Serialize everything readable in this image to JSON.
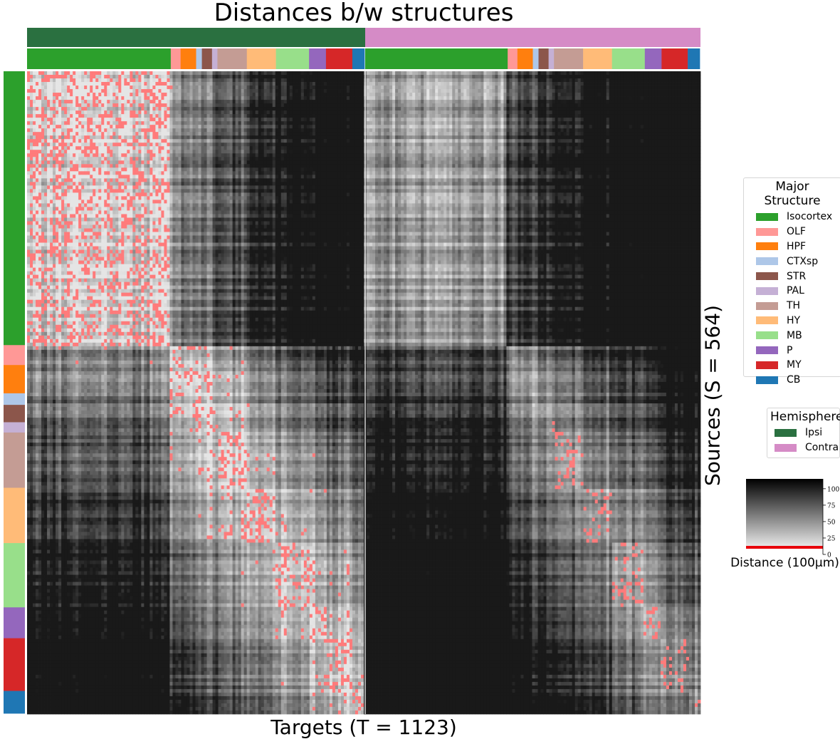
{
  "chart_data": {
    "type": "heatmap",
    "title": "Distances b/w structures",
    "xlabel": "Targets (T = 1123)",
    "ylabel": "Sources (S = 564)",
    "n_targets": 1123,
    "n_sources": 564,
    "colormap": "grayscale (light = small distance, dark = large distance); cells below threshold highlighted red",
    "highlight_color": "#ff7b7b",
    "colorbar": {
      "label": "Distance (100μm)",
      "ticks": [
        0,
        25,
        50,
        75,
        100
      ],
      "range": [
        0,
        115
      ],
      "threshold_band_color": "#e8000b"
    },
    "hemispheres": [
      {
        "name": "Ipsi",
        "color": "#2a7040"
      },
      {
        "name": "Contra",
        "color": "#d58bc6"
      }
    ],
    "major_structures": [
      {
        "name": "Isocortex",
        "color": "#2ca02c"
      },
      {
        "name": "OLF",
        "color": "#ff9896"
      },
      {
        "name": "HPF",
        "color": "#ff7f0e"
      },
      {
        "name": "CTXsp",
        "color": "#aec7e8"
      },
      {
        "name": "STR",
        "color": "#8c564b"
      },
      {
        "name": "PAL",
        "color": "#c5b0d5"
      },
      {
        "name": "TH",
        "color": "#c49c94"
      },
      {
        "name": "HY",
        "color": "#ffbb78"
      },
      {
        "name": "MB",
        "color": "#98df8a"
      },
      {
        "name": "P",
        "color": "#9467bd"
      },
      {
        "name": "MY",
        "color": "#d62728"
      },
      {
        "name": "CB",
        "color": "#1f77b4"
      }
    ],
    "source_structure_fractions": {
      "Isocortex": 0.426,
      "OLF": 0.031,
      "HPF": 0.044,
      "CTXsp": 0.018,
      "STR": 0.027,
      "PAL": 0.016,
      "TH": 0.086,
      "HY": 0.086,
      "MB": 0.1,
      "P": 0.048,
      "MY": 0.082,
      "CB": 0.035
    },
    "target_structure_fractions_per_hemisphere": {
      "Isocortex": 0.425,
      "OLF": 0.029,
      "HPF": 0.046,
      "CTXsp": 0.017,
      "STR": 0.03,
      "PAL": 0.016,
      "TH": 0.087,
      "HY": 0.086,
      "MB": 0.098,
      "P": 0.05,
      "MY": 0.078,
      "CB": 0.036
    },
    "legend_placement": "right"
  },
  "legends": {
    "major_title": "Major Structure",
    "hemisphere_title": "Hemisphere"
  }
}
